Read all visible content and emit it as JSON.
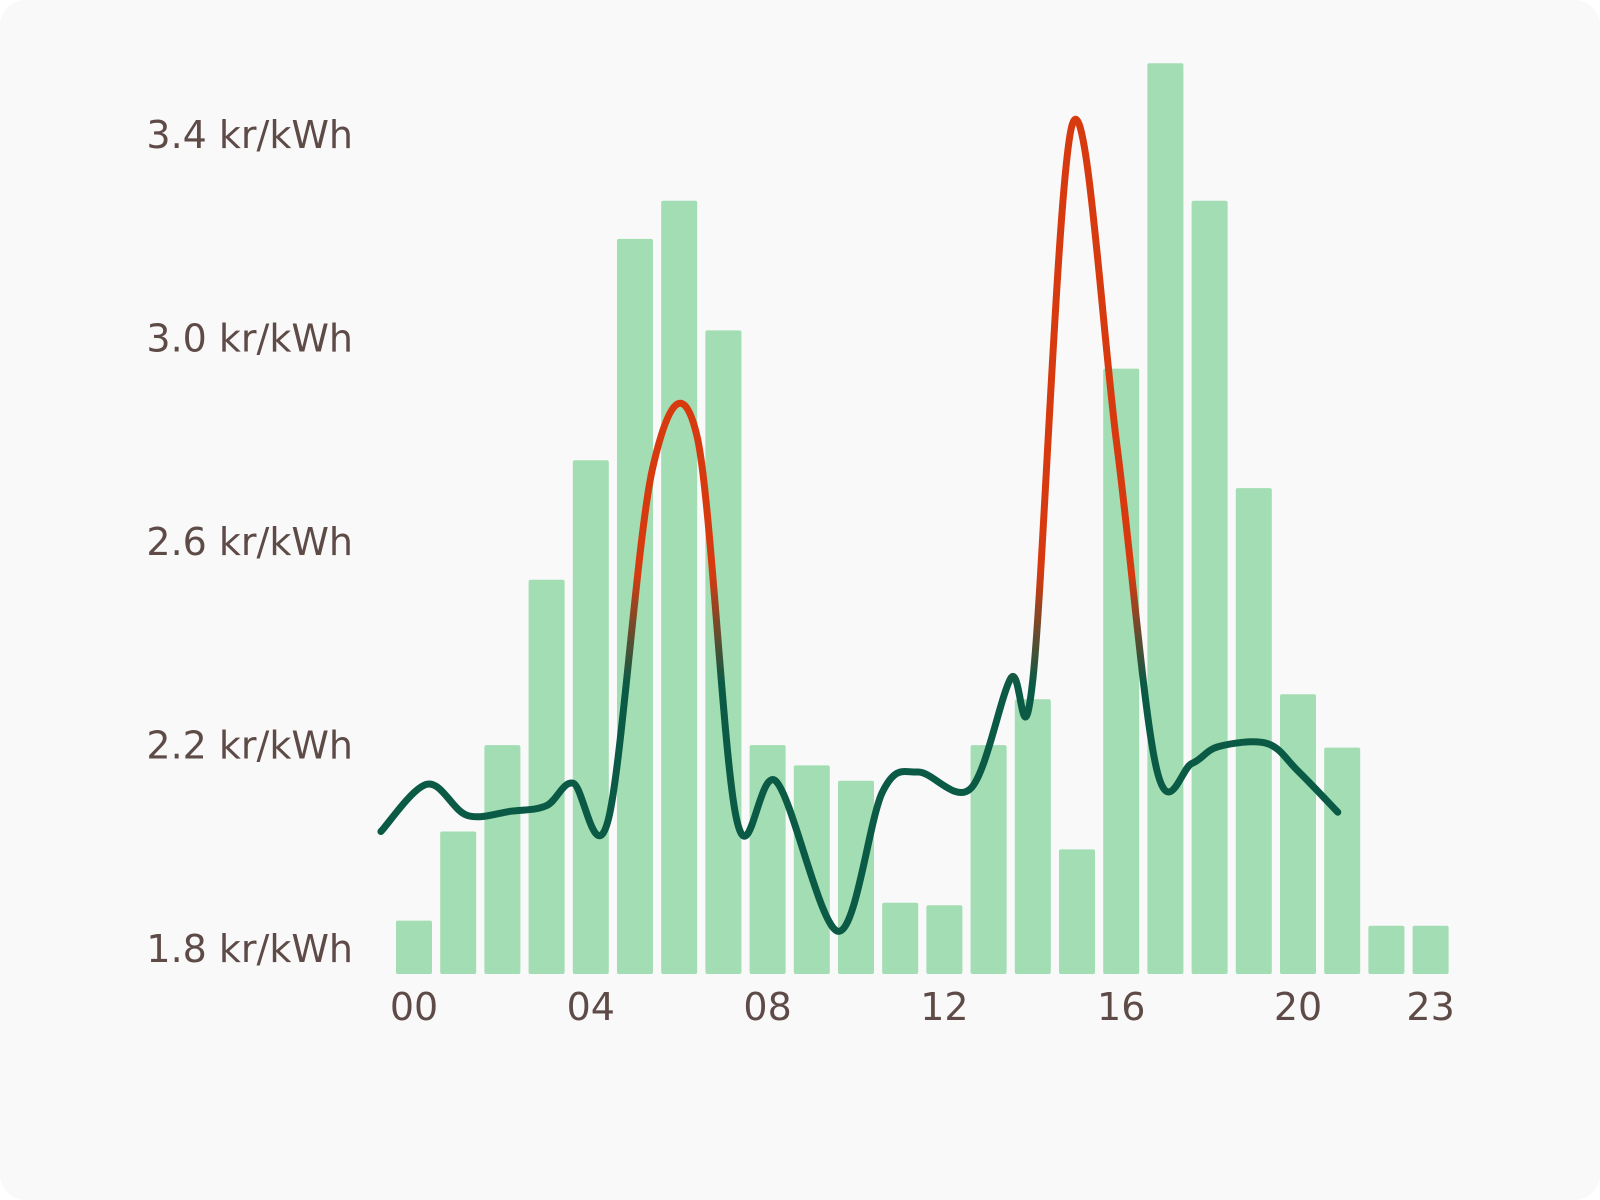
{
  "chart_data": {
    "type": "bar+line",
    "unit": "kr/kWh",
    "x_ticks": [
      "00",
      "04",
      "08",
      "12",
      "16",
      "20",
      "23"
    ],
    "y_ticks": [
      {
        "value": 1.8,
        "label": "1.8 kr/kWh"
      },
      {
        "value": 2.2,
        "label": "2.2 kr/kWh"
      },
      {
        "value": 2.6,
        "label": "2.6 kr/kWh"
      },
      {
        "value": 3.0,
        "label": "3.0 kr/kWh"
      },
      {
        "value": 3.4,
        "label": "3.4 kr/kWh"
      }
    ],
    "ylim": [
      1.8,
      3.4
    ],
    "grid": false,
    "hours": [
      "00",
      "01",
      "02",
      "03",
      "04",
      "05",
      "06",
      "07",
      "08",
      "09",
      "10",
      "11",
      "12",
      "13",
      "14",
      "15",
      "16",
      "17",
      "18",
      "19",
      "20",
      "21",
      "22",
      "23"
    ],
    "bar_values": [
      1.905,
      2.08,
      2.25,
      2.575,
      2.81,
      3.245,
      3.32,
      3.065,
      2.25,
      2.21,
      2.18,
      1.94,
      1.935,
      2.25,
      2.34,
      2.045,
      2.99,
      3.59,
      3.32,
      2.755,
      2.35,
      2.245,
      1.895,
      1.895
    ],
    "line_points": [
      [
        -0.75,
        2.08
      ],
      [
        0.3,
        2.173
      ],
      [
        1.2,
        2.112
      ],
      [
        2.2,
        2.12
      ],
      [
        3.0,
        2.131
      ],
      [
        3.6,
        2.175
      ],
      [
        4.4,
        2.105
      ],
      [
        5.4,
        2.795
      ],
      [
        6.4,
        2.858
      ],
      [
        7.3,
        2.103
      ],
      [
        8.2,
        2.178
      ],
      [
        9.6,
        1.884
      ],
      [
        10.6,
        2.158
      ],
      [
        11.4,
        2.197
      ],
      [
        12.6,
        2.165
      ],
      [
        13.5,
        2.381
      ],
      [
        14.0,
        2.378
      ],
      [
        14.9,
        3.472
      ],
      [
        15.9,
        2.841
      ],
      [
        16.8,
        2.203
      ],
      [
        17.6,
        2.214
      ],
      [
        18.2,
        2.247
      ],
      [
        19.3,
        2.253
      ],
      [
        20.0,
        2.199
      ],
      [
        20.9,
        2.118
      ]
    ],
    "line_colors": {
      "low": "#0b5a45",
      "high": "#d83a10"
    },
    "line_color_threshold": 2.45,
    "bar_color": "#a2ddb3"
  }
}
